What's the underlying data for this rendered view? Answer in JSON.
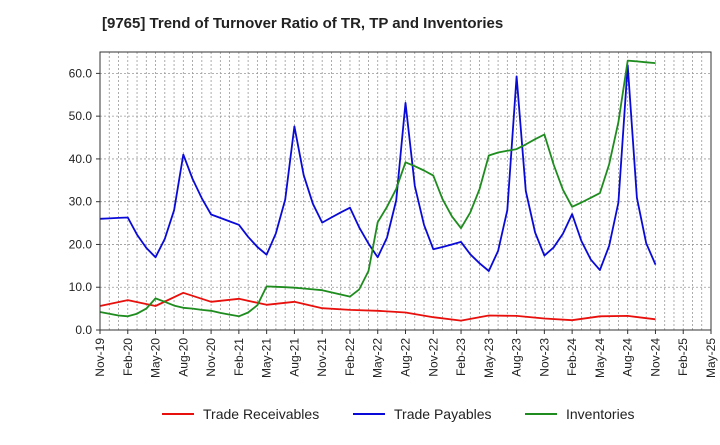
{
  "chart_data": {
    "type": "line",
    "title": "[9765]  Trend of Turnover Ratio of TR, TP and Inventories",
    "xlabel": "",
    "ylabel": "",
    "ylim": [
      0,
      65
    ],
    "yticks": [
      "0.0",
      "10.0",
      "20.0",
      "30.0",
      "40.0",
      "50.0",
      "60.0"
    ],
    "ytick_values": [
      0,
      10,
      20,
      30,
      40,
      50,
      60
    ],
    "xticks": [
      "Nov-19",
      "Feb-20",
      "May-20",
      "Aug-20",
      "Nov-20",
      "Feb-21",
      "May-21",
      "Aug-21",
      "Nov-21",
      "Feb-22",
      "May-22",
      "Aug-22",
      "Nov-22",
      "Feb-23",
      "May-23",
      "Aug-23",
      "Nov-23",
      "Feb-24",
      "May-24",
      "Aug-24",
      "Nov-24",
      "Feb-25",
      "May-25"
    ],
    "grid": true,
    "legend_position": "bottom",
    "x": [
      "Nov-19",
      "Dec-19",
      "Jan-20",
      "Feb-20",
      "Mar-20",
      "Apr-20",
      "May-20",
      "Jun-20",
      "Jul-20",
      "Aug-20",
      "Sep-20",
      "Oct-20",
      "Nov-20",
      "Dec-20",
      "Jan-21",
      "Feb-21",
      "Mar-21",
      "Apr-21",
      "May-21",
      "Jun-21",
      "Jul-21",
      "Aug-21",
      "Sep-21",
      "Oct-21",
      "Nov-21",
      "Dec-21",
      "Jan-22",
      "Feb-22",
      "Mar-22",
      "Apr-22",
      "May-22",
      "Jun-22",
      "Jul-22",
      "Aug-22",
      "Sep-22",
      "Oct-22",
      "Nov-22",
      "Dec-22",
      "Jan-23",
      "Feb-23",
      "Mar-23",
      "Apr-23",
      "May-23",
      "Jun-23",
      "Jul-23",
      "Aug-23",
      "Sep-23",
      "Oct-23",
      "Nov-23",
      "Dec-23",
      "Jan-24",
      "Feb-24",
      "Mar-24",
      "Apr-24",
      "May-24",
      "Jun-24",
      "Jul-24",
      "Aug-24",
      "Sep-24",
      "Oct-24",
      "Nov-24"
    ],
    "series": [
      {
        "name": "Trade Receivables",
        "color": "#e8100c",
        "values": [
          5.6,
          null,
          null,
          7.0,
          null,
          null,
          5.6,
          null,
          null,
          8.7,
          null,
          null,
          6.6,
          null,
          null,
          7.3,
          null,
          null,
          5.9,
          null,
          null,
          6.6,
          null,
          null,
          5.1,
          null,
          null,
          4.7,
          null,
          null,
          4.5,
          null,
          null,
          4.1,
          null,
          null,
          3.0,
          null,
          null,
          2.2,
          null,
          null,
          3.4,
          null,
          null,
          3.3,
          null,
          null,
          2.7,
          null,
          null,
          2.3,
          null,
          null,
          3.2,
          null,
          null,
          3.3,
          null,
          null,
          2.5
        ]
      },
      {
        "name": "Trade Payables",
        "color": "#0a0ad8",
        "values": [
          26.0,
          26.1,
          26.2,
          26.3,
          22.3,
          19.2,
          17.0,
          21.3,
          28.0,
          41.0,
          35.3,
          30.8,
          27.0,
          26.2,
          25.4,
          24.6,
          21.8,
          19.4,
          17.6,
          22.6,
          30.5,
          47.6,
          36.2,
          29.5,
          25.1,
          26.3,
          27.5,
          28.6,
          24.0,
          20.2,
          17.0,
          21.6,
          30.3,
          53.1,
          33.7,
          24.6,
          18.9,
          19.4,
          20.0,
          20.6,
          17.7,
          15.6,
          13.8,
          18.5,
          28.0,
          59.3,
          32.5,
          22.8,
          17.4,
          19.3,
          22.5,
          27.1,
          20.8,
          16.5,
          14.0,
          19.7,
          29.8,
          61.9,
          30.9,
          20.3,
          15.3
        ]
      },
      {
        "name": "Inventories",
        "color": "#1e8c1e",
        "values": [
          4.2,
          3.8,
          3.4,
          3.2,
          3.8,
          5.0,
          7.4,
          6.6,
          5.7,
          5.2,
          5.0,
          4.7,
          4.5,
          4.0,
          3.6,
          3.2,
          4.1,
          5.8,
          10.2,
          10.1,
          10.0,
          9.9,
          9.7,
          9.5,
          9.3,
          8.8,
          8.3,
          7.8,
          9.5,
          13.8,
          25.2,
          28.8,
          33.0,
          39.2,
          38.3,
          37.3,
          36.1,
          30.6,
          26.6,
          23.8,
          27.5,
          33.0,
          40.8,
          41.5,
          41.9,
          42.3,
          43.4,
          44.6,
          45.7,
          38.7,
          32.8,
          28.8,
          29.8,
          30.9,
          32.0,
          38.8,
          48.6,
          63.0,
          62.8,
          62.6,
          62.4
        ]
      }
    ]
  }
}
